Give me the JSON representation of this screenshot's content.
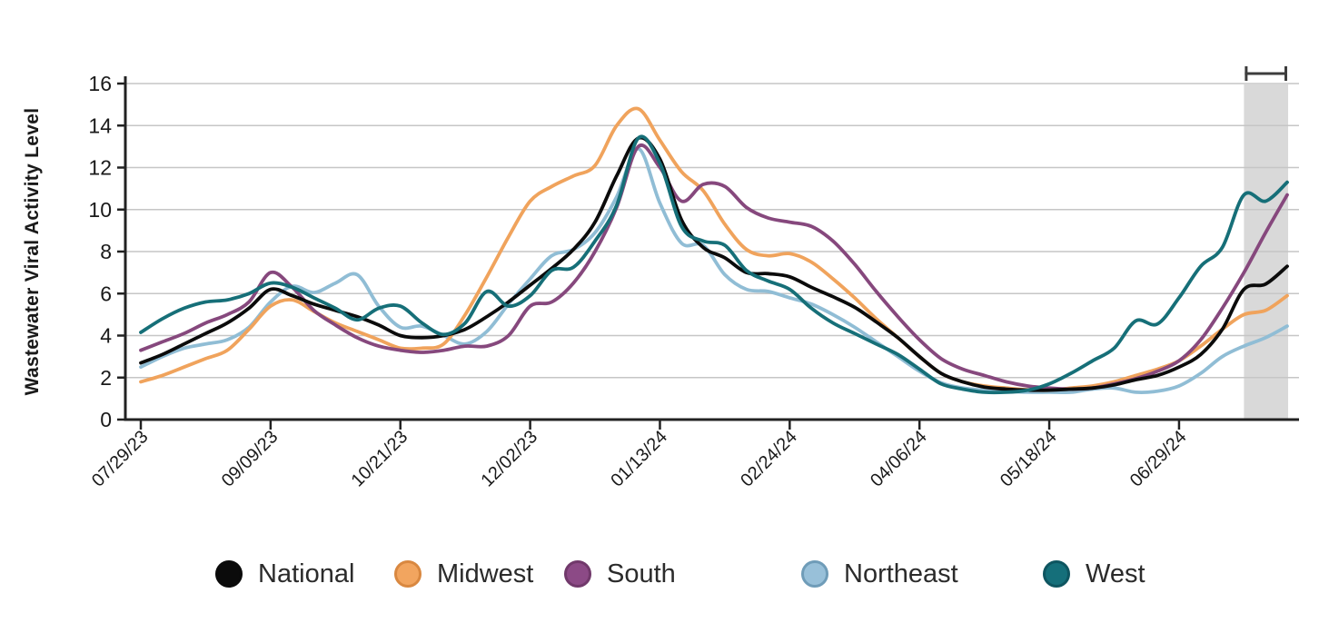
{
  "accent_colors": {
    "grid": "#c6c6c6",
    "axis": "#222222",
    "band_fill": "#d9d9d9",
    "bracket": "#3d3d3d",
    "background": "#ffffff"
  },
  "legend": {
    "items": [
      {
        "label": "National",
        "dot_fill": "#0b0b0b",
        "dot_border": "#0b0b0b"
      },
      {
        "label": "Midwest",
        "dot_fill": "#f2a55f",
        "dot_border": "#d98840"
      },
      {
        "label": "South",
        "dot_fill": "#8c4a86",
        "dot_border": "#71396b"
      },
      {
        "label": "Northeast",
        "dot_fill": "#98c0d9",
        "dot_border": "#6f9cb8"
      },
      {
        "label": "West",
        "dot_fill": "#156f7a",
        "dot_border": "#0e5560"
      }
    ]
  },
  "chart_data": {
    "type": "line",
    "title": "",
    "xlabel": "",
    "ylabel": "Wastewater Viral Activity Level",
    "ylim": [
      0,
      16
    ],
    "yticks": [
      0,
      2,
      4,
      6,
      8,
      10,
      12,
      14,
      16
    ],
    "grid": true,
    "legend_position": "bottom",
    "x_point_count": 54,
    "x_interval": "weekly",
    "tick_indices": [
      0,
      6,
      12,
      18,
      24,
      30,
      36,
      42,
      48
    ],
    "tick_labels": [
      "07/29/23",
      "09/09/23",
      "10/21/23",
      "12/02/23",
      "01/13/24",
      "02/24/24",
      "04/06/24",
      "05/18/24",
      "06/29/24"
    ],
    "provisional_band": {
      "from_index": 51,
      "note_marker": "bracket",
      "fill": "#d9d9d9"
    },
    "series": [
      {
        "name": "National",
        "color": "#0b0b0b",
        "values": [
          2.7,
          3.1,
          3.6,
          4.1,
          4.6,
          5.3,
          6.2,
          5.9,
          5.5,
          5.2,
          4.9,
          4.5,
          4.0,
          3.9,
          4.0,
          4.3,
          4.9,
          5.6,
          6.4,
          7.2,
          8.1,
          9.4,
          11.6,
          13.4,
          12.4,
          9.5,
          8.2,
          7.7,
          7.0,
          6.95,
          6.8,
          6.3,
          5.85,
          5.35,
          4.65,
          3.9,
          3.0,
          2.2,
          1.8,
          1.55,
          1.45,
          1.4,
          1.4,
          1.45,
          1.5,
          1.65,
          1.9,
          2.1,
          2.5,
          3.1,
          4.3,
          6.2,
          6.45,
          7.3
        ]
      },
      {
        "name": "Midwest",
        "color": "#f0a35c",
        "values": [
          1.8,
          2.1,
          2.5,
          2.9,
          3.3,
          4.3,
          5.4,
          5.7,
          5.15,
          4.6,
          4.2,
          3.8,
          3.4,
          3.4,
          3.6,
          5.0,
          6.8,
          8.7,
          10.4,
          11.1,
          11.6,
          12.1,
          14.0,
          14.8,
          13.3,
          11.8,
          10.9,
          9.3,
          8.1,
          7.8,
          7.9,
          7.5,
          6.7,
          5.8,
          4.8,
          3.9,
          3.0,
          2.2,
          1.8,
          1.6,
          1.5,
          1.42,
          1.4,
          1.5,
          1.6,
          1.8,
          2.1,
          2.4,
          2.8,
          3.5,
          4.3,
          5.0,
          5.2,
          5.9
        ]
      },
      {
        "name": "South",
        "color": "#86487d",
        "values": [
          3.3,
          3.7,
          4.1,
          4.6,
          5.0,
          5.6,
          7.0,
          6.3,
          5.2,
          4.5,
          3.9,
          3.5,
          3.3,
          3.2,
          3.3,
          3.5,
          3.5,
          4.0,
          5.4,
          5.6,
          6.5,
          8.0,
          10.1,
          13.0,
          12.0,
          10.4,
          11.2,
          11.1,
          10.1,
          9.6,
          9.4,
          9.2,
          8.5,
          7.4,
          6.1,
          4.9,
          3.8,
          2.9,
          2.4,
          2.1,
          1.8,
          1.6,
          1.5,
          1.45,
          1.5,
          1.7,
          1.95,
          2.3,
          2.8,
          3.8,
          5.3,
          7.0,
          8.9,
          10.7
        ]
      },
      {
        "name": "Northeast",
        "color": "#90bdd5",
        "values": [
          2.5,
          3.0,
          3.4,
          3.6,
          3.8,
          4.4,
          5.6,
          6.35,
          6.05,
          6.5,
          6.9,
          5.4,
          4.4,
          4.45,
          4.0,
          3.6,
          4.2,
          5.5,
          6.7,
          7.8,
          8.1,
          8.9,
          10.6,
          12.9,
          10.3,
          8.4,
          8.3,
          6.9,
          6.2,
          6.1,
          5.8,
          5.5,
          5.0,
          4.4,
          3.7,
          3.0,
          2.3,
          1.75,
          1.5,
          1.4,
          1.35,
          1.3,
          1.3,
          1.3,
          1.45,
          1.5,
          1.3,
          1.35,
          1.6,
          2.2,
          3.0,
          3.5,
          3.9,
          4.45
        ]
      },
      {
        "name": "West",
        "color": "#166f78",
        "values": [
          4.15,
          4.8,
          5.3,
          5.6,
          5.7,
          6.0,
          6.5,
          6.3,
          5.8,
          5.3,
          4.75,
          5.3,
          5.4,
          4.6,
          4.05,
          4.6,
          6.1,
          5.4,
          5.9,
          7.1,
          7.25,
          8.5,
          10.2,
          13.4,
          12.2,
          9.2,
          8.5,
          8.3,
          7.1,
          6.6,
          6.2,
          5.3,
          4.6,
          4.1,
          3.6,
          3.1,
          2.4,
          1.7,
          1.45,
          1.3,
          1.3,
          1.4,
          1.7,
          2.2,
          2.8,
          3.4,
          4.7,
          4.55,
          5.8,
          7.3,
          8.2,
          10.7,
          10.4,
          11.3
        ]
      }
    ]
  }
}
